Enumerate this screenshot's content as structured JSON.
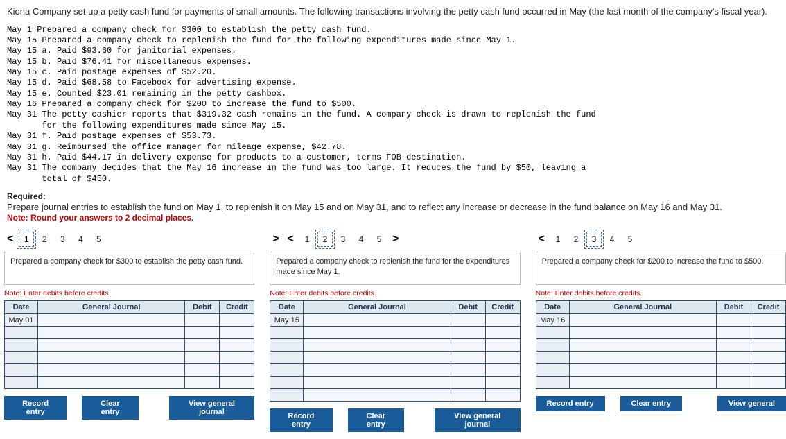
{
  "intro": "Kiona Company set up a petty cash fund for payments of small amounts. The following transactions involving the petty cash fund occurred in May (the last month of the company's fiscal year).",
  "transactions": "May 1 Prepared a company check for $300 to establish the petty cash fund.\nMay 15 Prepared a company check to replenish the fund for the following expenditures made since May 1.\nMay 15 a. Paid $93.60 for janitorial expenses.\nMay 15 b. Paid $76.41 for miscellaneous expenses.\nMay 15 c. Paid postage expenses of $52.20.\nMay 15 d. Paid $68.58 to Facebook for advertising expense.\nMay 15 e. Counted $23.01 remaining in the petty cashbox.\nMay 16 Prepared a company check for $200 to increase the fund to $500.\nMay 31 The petty cashier reports that $319.32 cash remains in the fund. A company check is drawn to replenish the fund\n       for the following expenditures made since May 15.\nMay 31 f. Paid postage expenses of $53.73.\nMay 31 g. Reimbursed the office manager for mileage expense, $42.78.\nMay 31 h. Paid $44.17 in delivery expense for products to a customer, terms FOB destination.\nMay 31 The company decides that the May 16 increase in the fund was too large. It reduces the fund by $50, leaving a\n       total of $450.",
  "required": {
    "label": "Required:",
    "text": "Prepare journal entries to establish the fund on May 1, to replenish it on May 15 and on May 31, and to reflect any increase or decrease in the fund balance on May 16 and May 31.",
    "note": "Note: Round your answers to 2 decimal places."
  },
  "debits_note": "Note: Enter debits before credits.",
  "table_headers": {
    "date": "Date",
    "gj": "General Journal",
    "debit": "Debit",
    "credit": "Credit"
  },
  "buttons": {
    "record": "Record entry",
    "clear": "Clear entry",
    "view": "View general journal",
    "view_short": "View general"
  },
  "panels": [
    {
      "active": 1,
      "steps": [
        "1",
        "2",
        "3",
        "4",
        "5"
      ],
      "desc": "Prepared a company check for $300 to establish the petty cash fund.",
      "date": "May 01",
      "rows": 6,
      "nav_left": true,
      "view_full": true
    },
    {
      "active": 2,
      "steps": [
        "1",
        "2",
        "3",
        "4",
        "5"
      ],
      "desc": "Prepared a company check to replenish the fund for the expenditures made since May 1.",
      "date": "May 15",
      "rows": 7,
      "nav_left": true,
      "nav_right": true,
      "view_full": true
    },
    {
      "active": 3,
      "steps": [
        "1",
        "2",
        "3",
        "4",
        "5"
      ],
      "desc": "Prepared a company check for $200 to increase the fund to $500.",
      "date": "May 16",
      "rows": 6,
      "nav_left": true,
      "view_full": false
    }
  ]
}
